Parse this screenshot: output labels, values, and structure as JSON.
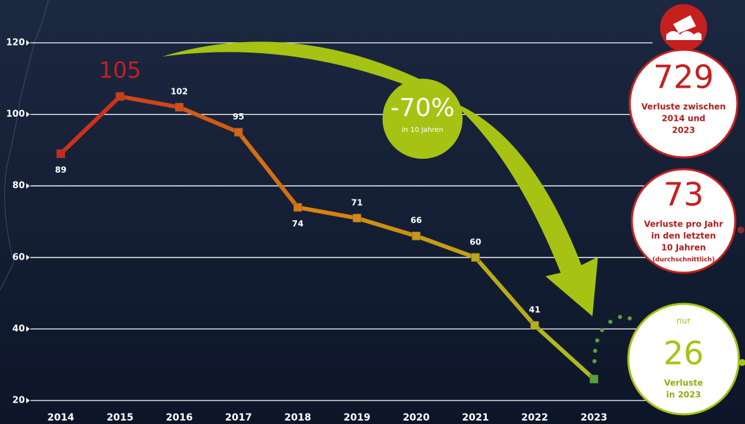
{
  "chart_data": {
    "type": "line",
    "categories": [
      "2014",
      "2015",
      "2016",
      "2017",
      "2018",
      "2019",
      "2020",
      "2021",
      "2022",
      "2023"
    ],
    "values": [
      89,
      105,
      102,
      95,
      74,
      71,
      66,
      60,
      41,
      26
    ],
    "color_start": "#c9281c",
    "color_mid": "#d9820f",
    "color_end": "#a9c020",
    "ylim": [
      20,
      120
    ],
    "yticks": [
      20,
      40,
      60,
      80,
      100,
      120
    ],
    "grid": true,
    "annotation": {
      "text": "-70%",
      "subtext": "in 10 Jahren"
    },
    "callouts": [
      {
        "value": 729,
        "lines": [
          "Verluste zwischen",
          "2014 und",
          "2023"
        ]
      },
      {
        "value": 73,
        "lines": [
          "Verluste pro Jahr",
          "in den letzten",
          "10 Jahren",
          "(durchschnittlich)"
        ]
      },
      {
        "prefix": "nur",
        "value": 26,
        "lines": [
          "Verluste",
          "in 2023"
        ]
      }
    ]
  }
}
